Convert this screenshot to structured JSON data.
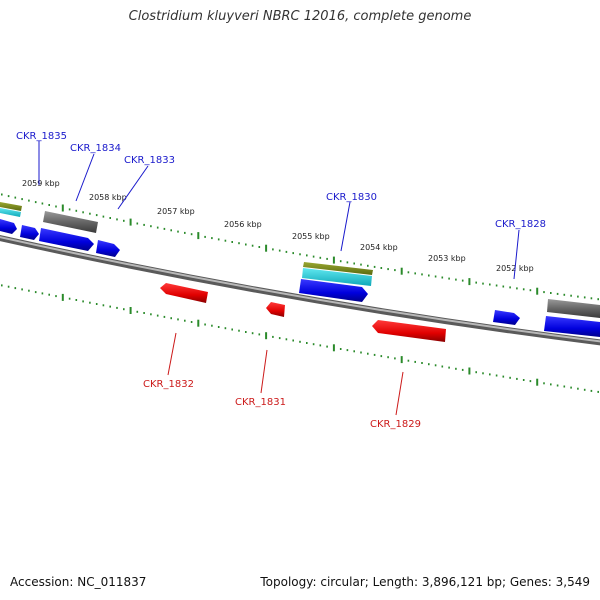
{
  "title": "Clostridium kluyveri NBRC 12016, complete genome",
  "footer": {
    "accession": "Accession: NC_011837",
    "topology": "Topology: circular; Length: 3,896,121 bp; Genes: 3,549"
  },
  "colors": {
    "forward_gene": "#0000ee",
    "reverse_gene": "#ee0000",
    "backbone": "#808080",
    "tick": "#2a8a2a",
    "olive_feature": "#7a8a20",
    "cyan_feature": "#20c8d0",
    "gray_feature": "#707070"
  },
  "kbp_labels": [
    "2059 kbp",
    "2058 kbp",
    "2057 kbp",
    "2056 kbp",
    "2055 kbp",
    "2054 kbp",
    "2053 kbp",
    "2052 kbp"
  ],
  "genes_forward": [
    "CKR_1835",
    "CKR_1834",
    "CKR_1833",
    "CKR_1830",
    "CKR_1828"
  ],
  "genes_reverse": [
    "CKR_1832",
    "CKR_1831",
    "CKR_1829"
  ]
}
